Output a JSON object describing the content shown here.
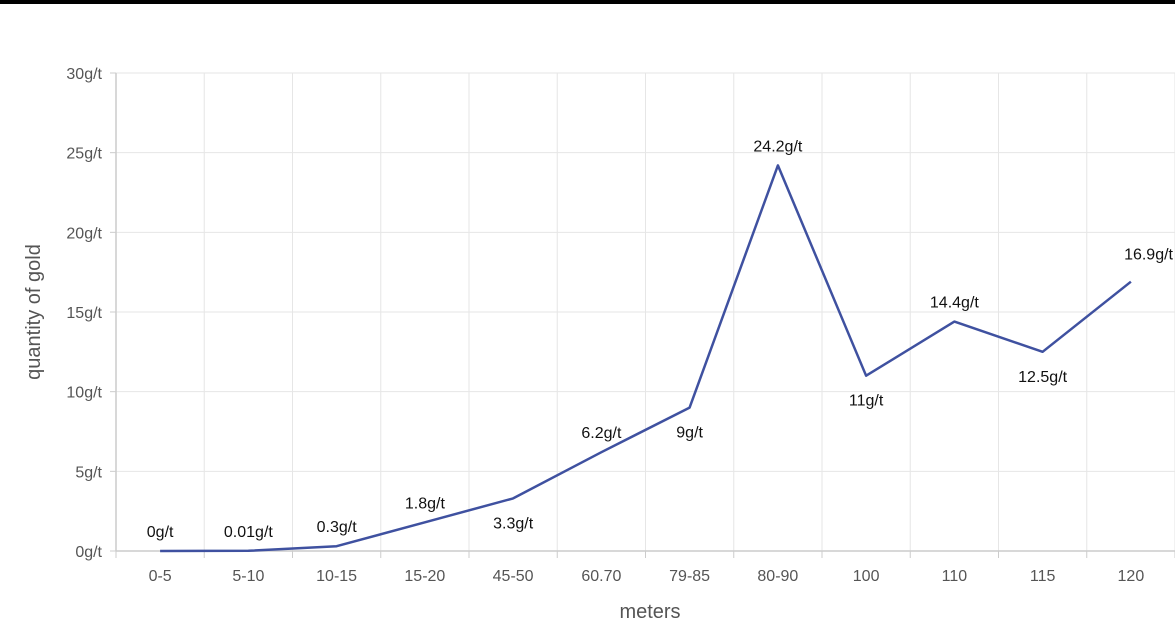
{
  "chart_data": {
    "type": "line",
    "xlabel": "meters",
    "ylabel": "quantity of gold",
    "categories": [
      "0-5",
      "5-10",
      "10-15",
      "15-20",
      "45-50",
      "60.70",
      "79-85",
      "80-90",
      "100",
      "110",
      "115",
      "120"
    ],
    "series": [
      {
        "values": [
          0,
          0.01,
          0.3,
          1.8,
          3.3,
          6.2,
          9,
          24.2,
          11,
          14.4,
          12.5,
          16.9
        ],
        "point_labels": [
          "0g/t",
          "0.01g/t",
          "0.3g/t",
          "1.8g/t",
          "3.3g/t",
          "6.2g/t",
          "9g/t",
          "24.2g/t",
          "11g/t",
          "14.4g/t",
          "12.5g/t",
          "16.9g/t"
        ],
        "color": "#3f51a0"
      }
    ],
    "ylim": [
      0,
      30
    ],
    "yticks": [
      0,
      5,
      10,
      15,
      20,
      25,
      30
    ],
    "ytick_labels": [
      "0g/t",
      "5g/t",
      "10g/t",
      "15g/t",
      "20g/t",
      "25g/t",
      "30g/t"
    ],
    "grid": true
  }
}
